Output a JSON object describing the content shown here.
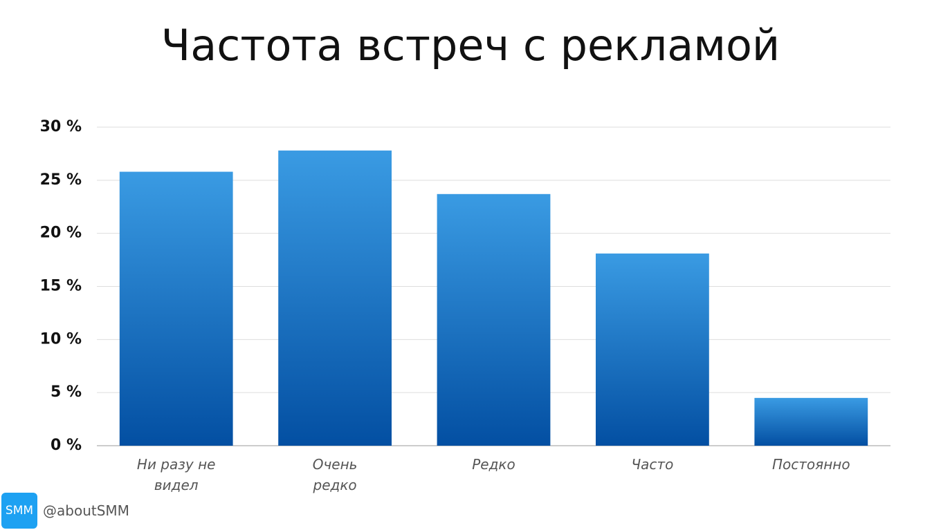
{
  "chart_data": {
    "type": "bar",
    "title": "Частота встреч с рекламой",
    "categories": [
      "Ни разу не видел",
      "Очень редко",
      "Редко",
      "Часто",
      "Постоянно"
    ],
    "values": [
      25.8,
      27.8,
      23.7,
      18.1,
      4.5
    ],
    "gradient": [
      "#3a9be3",
      "#034fa2"
    ],
    "ylim": [
      0,
      30
    ],
    "yticks": [
      {
        "value": 0,
        "label": "0 %"
      },
      {
        "value": 5,
        "label": "5 %"
      },
      {
        "value": 10,
        "label": "10 %"
      },
      {
        "value": 15,
        "label": "15 %"
      },
      {
        "value": 20,
        "label": "20 %"
      },
      {
        "value": 25,
        "label": "25 %"
      },
      {
        "value": 30,
        "label": "30 %"
      }
    ],
    "grid": true
  },
  "footer": {
    "logo": "SMM",
    "handle": "@aboutSMM"
  }
}
